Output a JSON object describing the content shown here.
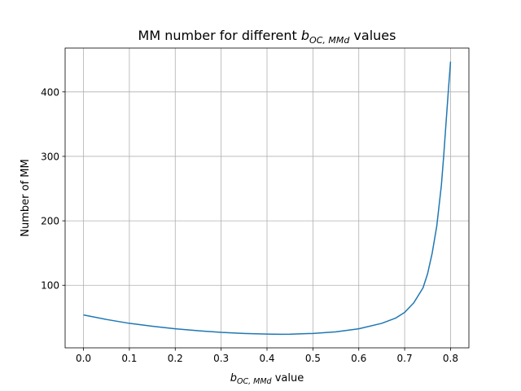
{
  "chart_data": {
    "type": "line",
    "title_prefix": "MM number for different ",
    "title_var": "b",
    "title_sub": "OC, MMd",
    "title_suffix": " values",
    "xlabel_var": "b",
    "xlabel_sub": "OC, MMd",
    "xlabel_suffix": " value",
    "ylabel": "Number of MM",
    "xlim": [
      -0.04,
      0.84
    ],
    "ylim": [
      3,
      468
    ],
    "xticks": [
      "0.0",
      "0.1",
      "0.2",
      "0.3",
      "0.4",
      "0.5",
      "0.6",
      "0.7",
      "0.8"
    ],
    "yticks": [
      "100",
      "200",
      "300",
      "400"
    ],
    "grid": true,
    "series": [
      {
        "color": "#1f77b4",
        "x": [
          0.0,
          0.05,
          0.1,
          0.15,
          0.2,
          0.25,
          0.3,
          0.35,
          0.4,
          0.43,
          0.45,
          0.5,
          0.55,
          0.6,
          0.65,
          0.68,
          0.7,
          0.72,
          0.74,
          0.75,
          0.76,
          0.77,
          0.78,
          0.785,
          0.79,
          0.795,
          0.8
        ],
        "y": [
          54,
          47,
          41,
          36.5,
          32.5,
          29.5,
          27,
          25.3,
          24.3,
          24,
          24.1,
          25.3,
          27.8,
          32.5,
          41,
          49,
          58,
          73,
          96,
          118,
          150,
          192,
          255,
          300,
          350,
          400,
          447
        ]
      }
    ]
  }
}
